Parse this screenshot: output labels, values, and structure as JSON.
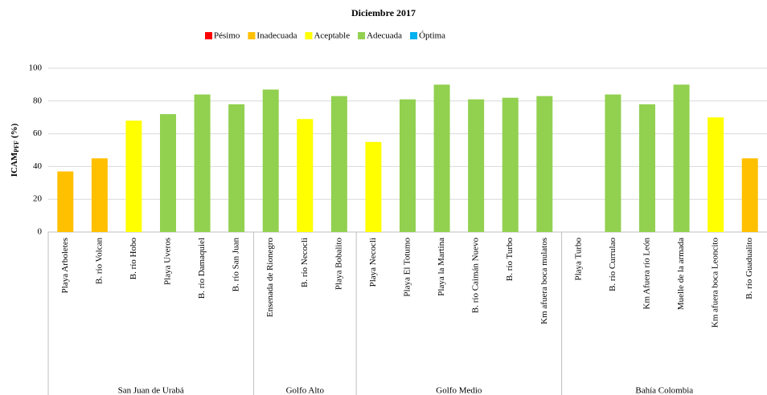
{
  "chart_data": {
    "type": "bar",
    "title": "Diciembre 2017",
    "y_label": {
      "main": "ICAM",
      "sub": "PFF",
      "unit": "(%)"
    },
    "legend": [
      {
        "name": "Pésimo",
        "color": "#ff0000"
      },
      {
        "name": "Inadecuada",
        "color": "#ffc000"
      },
      {
        "name": "Aceptable",
        "color": "#ffff00"
      },
      {
        "name": "Adecuada",
        "color": "#92d050"
      },
      {
        "name": "Óptima",
        "color": "#00b0f0"
      }
    ],
    "categories": [
      "Playa Arboletes",
      "B. río Volcan",
      "B. río Hobo",
      "Playa Uveros",
      "B. río Damaquiel",
      "B. río San Juan",
      "Ensenada de Rionegro",
      "B. río Necocli",
      "Playa Bobalito",
      "Playa Necocli",
      "Playa El Totumo",
      "Playa la Martina",
      "B. río Caimán Nuevo",
      "B. río Turbo",
      "Km afuera boca mulatos",
      "Playa Turbo",
      "B. río Currulao",
      "Km Afuera río León",
      "Muelle de la armada",
      "Km afuera boca Leoncito",
      "B. río Guadualito"
    ],
    "values": [
      37,
      45,
      68,
      72,
      84,
      78,
      87,
      69,
      83,
      55,
      81,
      90,
      81,
      82,
      83,
      null,
      84,
      78,
      90,
      70,
      45
    ],
    "colors": [
      "#ffc000",
      "#ffc000",
      "#ffff00",
      "#92d050",
      "#92d050",
      "#92d050",
      "#92d050",
      "#ffff00",
      "#92d050",
      "#ffff00",
      "#92d050",
      "#92d050",
      "#92d050",
      "#92d050",
      "#92d050",
      null,
      "#92d050",
      "#92d050",
      "#92d050",
      "#ffff00",
      "#ffc000"
    ],
    "groups": [
      {
        "name": "San Juan de Urabá",
        "count": 6
      },
      {
        "name": "Golfo Alto",
        "count": 3
      },
      {
        "name": "Golfo Medio",
        "count": 6
      },
      {
        "name": "Bahía Colombia",
        "count": 6
      }
    ],
    "ylim": [
      0,
      100
    ],
    "yticks": [
      0,
      20,
      40,
      60,
      80,
      100
    ],
    "grid": true
  }
}
